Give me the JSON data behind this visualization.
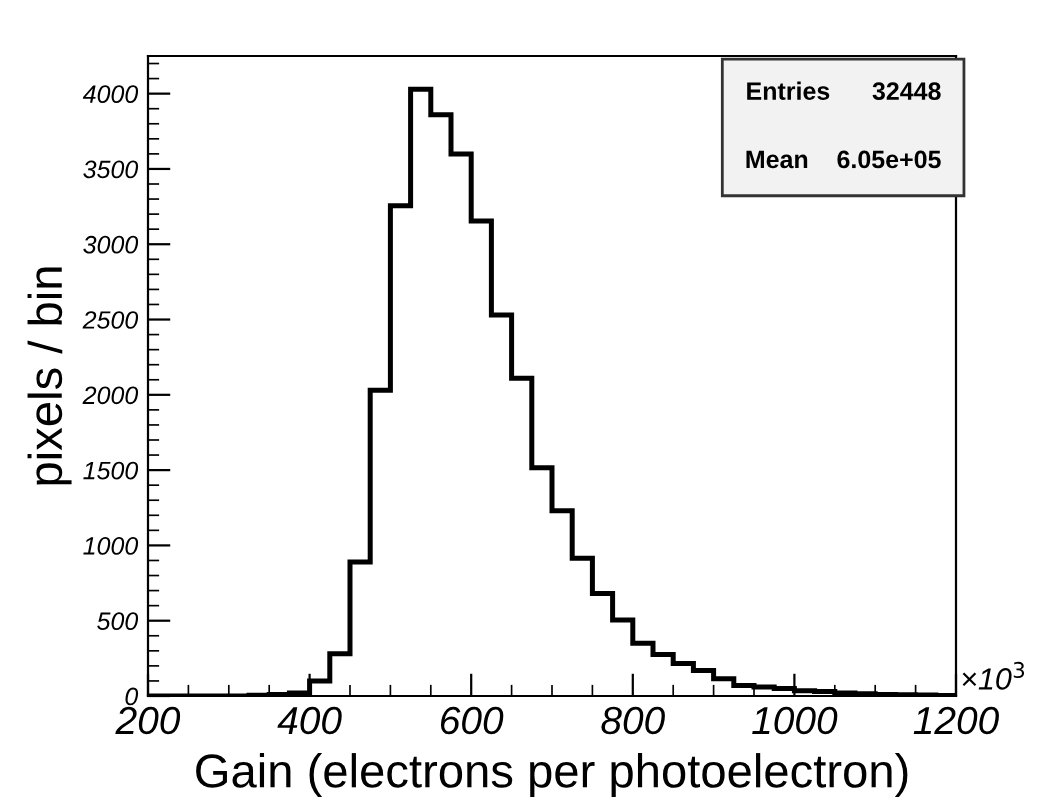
{
  "chart_data": {
    "type": "histogram",
    "xlabel": "Gain (electrons per photoelectron)",
    "ylabel": "pixels / bin",
    "bins": [
      200,
      225,
      250,
      275,
      300,
      325,
      350,
      375,
      400,
      425,
      450,
      475,
      500,
      525,
      550,
      575,
      600,
      625,
      650,
      675,
      700,
      725,
      750,
      775,
      800,
      825,
      850,
      875,
      900,
      925,
      950,
      975,
      1000,
      1025,
      1050,
      1075,
      1100,
      1125,
      1150,
      1175,
      1200
    ],
    "values": [
      0,
      0,
      0,
      0,
      0,
      5,
      10,
      20,
      100,
      280,
      890,
      2030,
      3255,
      4030,
      3860,
      3600,
      3155,
      2530,
      2110,
      1515,
      1230,
      915,
      680,
      505,
      350,
      275,
      215,
      170,
      115,
      70,
      60,
      50,
      35,
      30,
      20,
      15,
      10,
      8,
      6,
      3
    ],
    "color": "#000000",
    "xlim": [
      200,
      1200
    ],
    "xticks": [
      200,
      400,
      600,
      800,
      1000,
      1200
    ],
    "ylim": [
      0,
      4250
    ],
    "yticks": [
      0,
      500,
      1000,
      1500,
      2000,
      2500,
      3000,
      3500,
      4000
    ],
    "annotations": [
      "×10$^{3}$",
      "Entries      32448",
      "Mean    6.05e+05"
    ],
    "grid": false,
    "legend": false
  }
}
